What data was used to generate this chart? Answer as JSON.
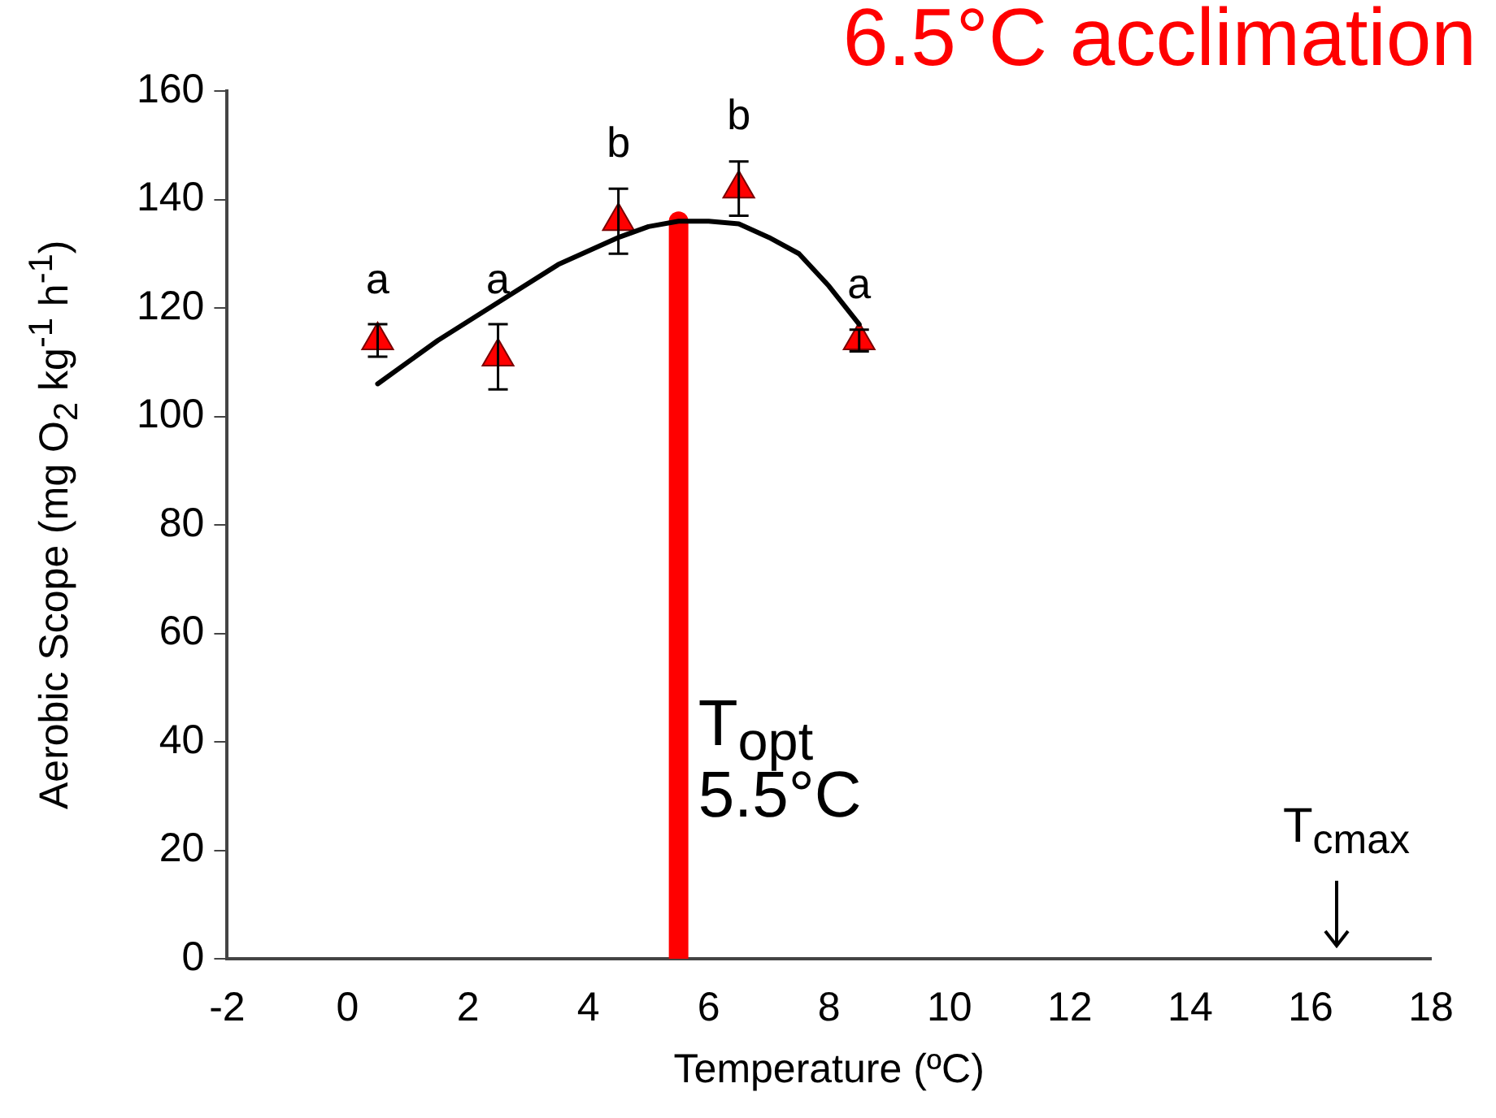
{
  "chart_data": {
    "type": "scatter",
    "title": "6.5°C acclimation",
    "xlabel": "Temperature (ºC)",
    "ylabel": "Aerobic Scope (mg O$_{2}$ kg$^{-1}$ h$^{-1}$)",
    "xlim": [
      -2,
      18
    ],
    "xticks": [
      -2,
      0,
      2,
      4,
      6,
      8,
      10,
      12,
      14,
      16,
      18
    ],
    "ylim": [
      0,
      160
    ],
    "yticks": [
      0,
      20,
      40,
      60,
      80,
      100,
      120,
      140,
      160
    ],
    "grid": false,
    "legend": false,
    "marker": "triangle",
    "series": [
      {
        "type": "line",
        "color": "#000000",
        "marker": "none",
        "x": [
          0.5,
          1.5,
          2.5,
          3.5,
          4.5,
          5,
          5.5,
          6,
          6.5,
          7,
          7.5,
          8,
          8.5
        ],
        "values": [
          106,
          114,
          121,
          128,
          133,
          135,
          136,
          136,
          135.5,
          133,
          130,
          124,
          117
        ]
      },
      {
        "type": "line",
        "color": "#ff0000",
        "marker": "none",
        "x": [
          5.5,
          5.5
        ],
        "values": [
          0,
          136
        ]
      },
      {
        "color": "#ff0000",
        "x": [
          0.5,
          2.5,
          4.5,
          6.5,
          8.5
        ],
        "values": [
          114,
          111,
          136,
          142,
          114
        ],
        "errors": [
          3,
          6,
          6,
          5,
          2
        ]
      }
    ],
    "annotations": [
      {
        "text": "a",
        "x": 0.5,
        "y": 114
      },
      {
        "text": "a",
        "x": 2.5,
        "y": 111
      },
      {
        "text": "b",
        "x": 4.5,
        "y": 136
      },
      {
        "text": "b",
        "x": 6.5,
        "y": 142
      },
      {
        "text": "a",
        "x": 8.5,
        "y": 114
      },
      {
        "text": "T$_{opt}$",
        "x": 5.5,
        "y": 42
      },
      {
        "text": "5.5°C",
        "x": 5.5,
        "y": 30
      },
      "T$_{cmax}$"
    ]
  }
}
